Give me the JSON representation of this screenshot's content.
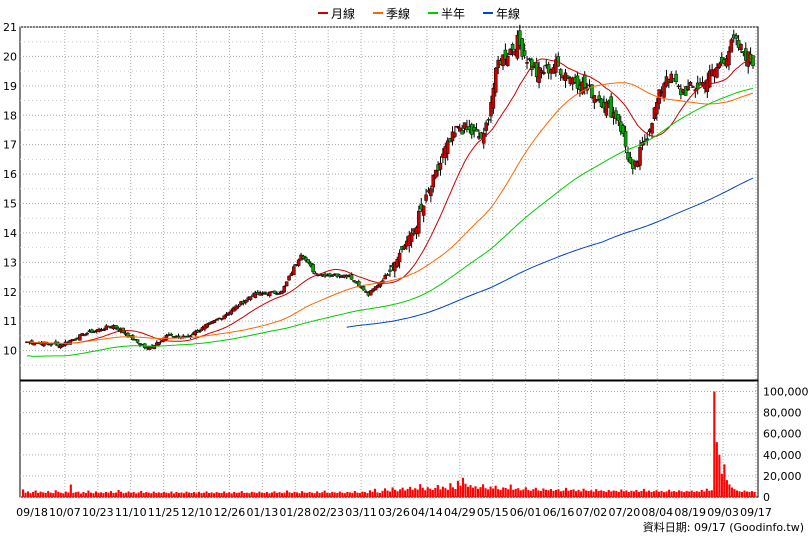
{
  "chart_data": {
    "type": "candlestick",
    "legend_position": "top-center",
    "grid": true,
    "legend": [
      {
        "name": "月線",
        "color": "#cc0000"
      },
      {
        "name": "季線",
        "color": "#ff6600"
      },
      {
        "name": "半年",
        "color": "#00cc00"
      },
      {
        "name": "年線",
        "color": "#0044cc"
      }
    ],
    "colors": {
      "up": "#cc0000",
      "down": "#00aa00",
      "volume": "#ff0000",
      "grid": "#aaaaaa"
    },
    "price_axis": {
      "min": 9,
      "max": 21,
      "ticks": [
        "21",
        "20",
        "19",
        "18",
        "17",
        "16",
        "15",
        "14",
        "13",
        "12",
        "11",
        "10"
      ]
    },
    "volume_axis": {
      "min": 0,
      "max": 110000,
      "ticks": [
        "100,000",
        "80,000",
        "60,000",
        "40,000",
        "20,000",
        "0"
      ]
    },
    "x_labels": [
      "09/18",
      "10/07",
      "10/23",
      "11/10",
      "11/25",
      "12/10",
      "12/26",
      "01/13",
      "01/28",
      "02/23",
      "03/11",
      "03/26",
      "04/14",
      "04/29",
      "05/15",
      "06/01",
      "06/16",
      "07/02",
      "07/20",
      "08/04",
      "08/19",
      "09/03",
      "09/17"
    ],
    "price_anchors": [
      [
        0,
        10.3
      ],
      [
        14,
        10.2
      ],
      [
        25,
        10.6
      ],
      [
        36,
        10.85
      ],
      [
        44,
        10.4
      ],
      [
        50,
        10.05
      ],
      [
        58,
        10.5
      ],
      [
        66,
        10.45
      ],
      [
        74,
        10.8
      ],
      [
        82,
        11.2
      ],
      [
        94,
        11.9
      ],
      [
        106,
        12.0
      ],
      [
        114,
        13.3
      ],
      [
        120,
        12.6
      ],
      [
        134,
        12.55
      ],
      [
        142,
        11.9
      ],
      [
        150,
        12.6
      ],
      [
        160,
        14.0
      ],
      [
        166,
        15.1
      ],
      [
        174,
        16.8
      ],
      [
        180,
        17.6
      ],
      [
        190,
        17.2
      ],
      [
        196,
        19.8
      ],
      [
        204,
        20.5
      ],
      [
        212,
        19.4
      ],
      [
        220,
        19.7
      ],
      [
        228,
        19.2
      ],
      [
        238,
        18.6
      ],
      [
        246,
        17.9
      ],
      [
        252,
        16.0
      ],
      [
        258,
        17.4
      ],
      [
        266,
        19.4
      ],
      [
        272,
        18.8
      ],
      [
        280,
        19.0
      ],
      [
        288,
        19.7
      ],
      [
        294,
        20.5
      ],
      [
        302,
        19.8
      ]
    ],
    "volume_values": [
      7200,
      4100,
      5300,
      3600,
      4800,
      6200,
      3900,
      5100,
      4400,
      3800,
      5600,
      4200,
      3700,
      6400,
      4900,
      4100,
      3500,
      5200,
      4300,
      11800,
      3900,
      4600,
      5100,
      3300,
      4700,
      3800,
      6100,
      4200,
      3600,
      5300,
      3900,
      4400,
      3700,
      4800,
      4100,
      5600,
      3800,
      4200,
      6700,
      4900,
      3600,
      4100,
      5200,
      3900,
      4700,
      3400,
      4300,
      5800,
      3900,
      4600,
      4200,
      3500,
      5100,
      3800,
      4400,
      3700,
      4900,
      4100,
      3600,
      5200,
      3400,
      4800,
      3900,
      4300,
      3600,
      5100,
      4200,
      3800,
      4600,
      3500,
      4900,
      3700,
      4100,
      5300,
      3800,
      4400,
      3600,
      4700,
      4000,
      3900,
      5200,
      3700,
      4500,
      3400,
      4800,
      3900,
      4200,
      5600,
      3800,
      4100,
      3600,
      4900,
      4400,
      3700,
      5100,
      4000,
      3800,
      4700,
      3500,
      4300,
      5400,
      3900,
      4600,
      3700,
      4100,
      6200,
      4400,
      3800,
      5000,
      4300,
      3600,
      5500,
      4200,
      3900,
      4700,
      4100,
      3600,
      5300,
      3800,
      4500,
      6100,
      4000,
      3700,
      4900,
      4300,
      3800,
      5200,
      4100,
      3600,
      4800,
      4400,
      3900,
      5700,
      4200,
      3800,
      5100,
      4600,
      3700,
      6300,
      4900,
      7800,
      4400,
      3800,
      5900,
      8200,
      6100,
      5200,
      9100,
      6800,
      5400,
      7300,
      8900,
      6200,
      7700,
      9600,
      6900,
      8300,
      7100,
      12200,
      8800,
      6400,
      9300,
      7900,
      6700,
      8600,
      11400,
      7200,
      9800,
      8400,
      6900,
      13100,
      9200,
      7600,
      15400,
      10800,
      18200,
      12600,
      9700,
      11300,
      8900,
      10200,
      7800,
      9400,
      12100,
      8300,
      7200,
      9900,
      8100,
      10700,
      7400,
      6800,
      9100,
      8600,
      7300,
      11800,
      6900,
      7700,
      8400,
      6300,
      7100,
      9200,
      6600,
      5900,
      7400,
      8800,
      6200,
      5700,
      8100,
      6900,
      6400,
      7600,
      5800,
      6700,
      7300,
      5400,
      6100,
      8700,
      5900,
      6600,
      7200,
      5500,
      6800,
      5300,
      7900,
      6200,
      5700,
      6400,
      5100,
      7400,
      5800,
      6300,
      5600,
      4900,
      6700,
      5300,
      6100,
      5800,
      4800,
      7100,
      5500,
      6200,
      4700,
      5900,
      5300,
      6600,
      4900,
      5700,
      7700,
      5200,
      6100,
      4800,
      5500,
      6400,
      5000,
      5800,
      4600,
      5300,
      6900,
      5100,
      5600,
      4900,
      6300,
      5400,
      4700,
      5800,
      5200,
      6100,
      4800,
      5500,
      5000,
      6700,
      5300,
      7900,
      5900,
      6400,
      100000,
      52000,
      40000,
      22000,
      31000,
      16000,
      12000,
      9000,
      7500,
      6200,
      5400,
      4800,
      6100,
      5200,
      4900,
      5600,
      4700
    ]
  },
  "footer": {
    "label": "資料日期: 09/17  (Goodinfo.tw)"
  }
}
